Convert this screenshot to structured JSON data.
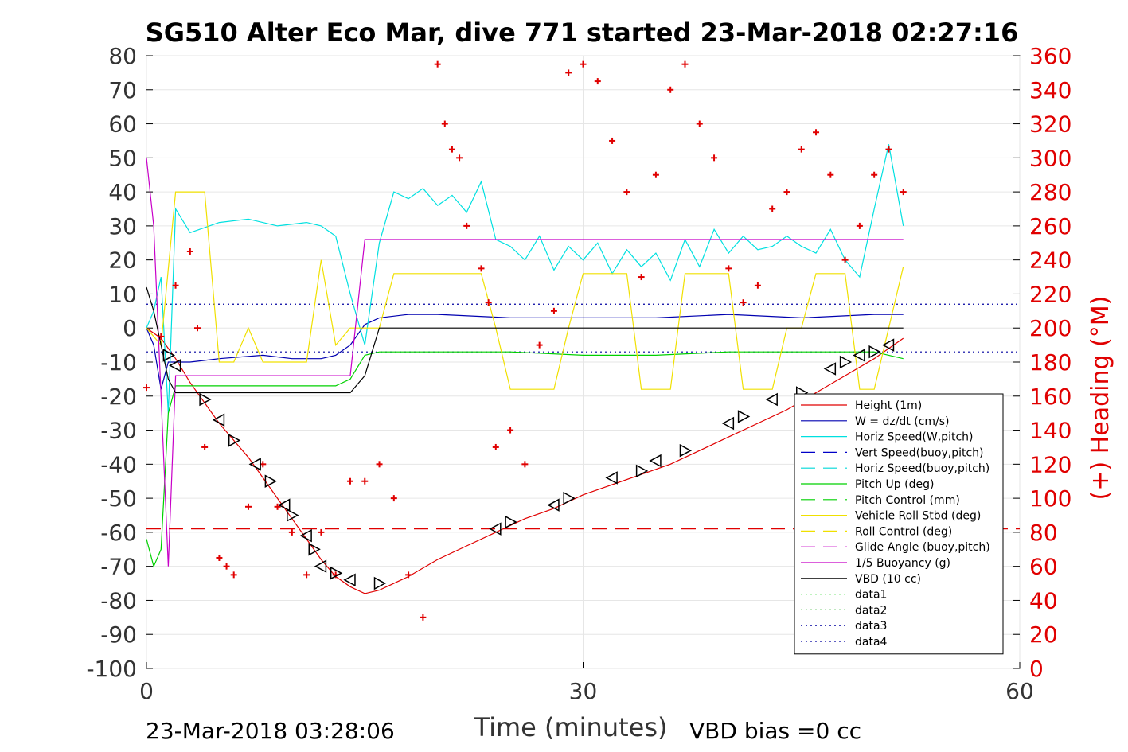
{
  "chart_data": {
    "type": "line",
    "title": "SG510 Alter Eco Mar, dive 771 started 23-Mar-2018 02:27:16",
    "xlabel": "Time (minutes)",
    "ylabel_right": "(+) Heading (°M)",
    "xlim": [
      0,
      60
    ],
    "ylim": [
      -100,
      80
    ],
    "ylim_right": [
      0,
      360
    ],
    "x_ticks": [
      "0",
      "30",
      "60"
    ],
    "y_ticks": [
      "80",
      "70",
      "60",
      "50",
      "40",
      "30",
      "20",
      "10",
      "0",
      "-10",
      "-20",
      "-30",
      "-40",
      "-50",
      "-60",
      "-70",
      "-80",
      "-90",
      "-100"
    ],
    "y_ticks_right": [
      "360",
      "340",
      "320",
      "300",
      "280",
      "260",
      "240",
      "220",
      "200",
      "180",
      "160",
      "140",
      "120",
      "100",
      "80",
      "60",
      "40",
      "20",
      "0"
    ],
    "grid": true,
    "legend_position": "bottom-right",
    "footer_left": "23-Mar-2018 03:28:06",
    "footer_right": "VBD bias =0 cc",
    "legend": [
      {
        "label": "Height (1m)",
        "color": "#e00000",
        "style": "solid"
      },
      {
        "label": "W = dz/dt (cm/s)",
        "color": "#0000b0",
        "style": "solid"
      },
      {
        "label": "Horiz Speed(W,pitch)",
        "color": "#00e0e0",
        "style": "solid"
      },
      {
        "label": "Vert Speed(buoy,pitch)",
        "color": "#0000c8",
        "style": "dashed"
      },
      {
        "label": "Horiz Speed(buoy,pitch)",
        "color": "#00d8d8",
        "style": "dashed"
      },
      {
        "label": "Pitch Up (deg)",
        "color": "#00d000",
        "style": "solid"
      },
      {
        "label": "Pitch Control (mm)",
        "color": "#00d000",
        "style": "dashed"
      },
      {
        "label": "Vehicle Roll Stbd (deg)",
        "color": "#f0e000",
        "style": "solid"
      },
      {
        "label": "Roll Control (deg)",
        "color": "#f0e000",
        "style": "dashed"
      },
      {
        "label": "Glide Angle (buoy,pitch)",
        "color": "#c800c8",
        "style": "dashed"
      },
      {
        "label": "1/5 Buoyancy (g)",
        "color": "#c800c8",
        "style": "solid"
      },
      {
        "label": "VBD (10 cc)",
        "color": "#000000",
        "style": "solid"
      },
      {
        "label": "data1",
        "color": "#00d000",
        "style": "dotted"
      },
      {
        "label": "data2",
        "color": "#00a000",
        "style": "dotted"
      },
      {
        "label": "data3",
        "color": "#0000a0",
        "style": "dotted"
      },
      {
        "label": "data4",
        "color": "#0000a0",
        "style": "dotted"
      }
    ],
    "series": [
      {
        "name": "Height (1m)",
        "color": "#e00000",
        "x": [
          0,
          1,
          2,
          3,
          4,
          5,
          6,
          7,
          8,
          9,
          10,
          11,
          12,
          13,
          14,
          15,
          16,
          18,
          20,
          22,
          24,
          26,
          28,
          30,
          32,
          34,
          36,
          38,
          40,
          42,
          44,
          46,
          48,
          50,
          51,
          52
        ],
        "y": [
          0,
          -3,
          -9,
          -16,
          -22,
          -28,
          -33,
          -38,
          -44,
          -50,
          -56,
          -62,
          -68,
          -73,
          -76,
          -78,
          -77,
          -73,
          -68,
          -64,
          -60,
          -56,
          -53,
          -49,
          -46,
          -43,
          -40,
          -36,
          -32,
          -28,
          -24,
          -19,
          -14,
          -9,
          -6,
          -3
        ]
      },
      {
        "name": "W = dz/dt (cm/s)",
        "color": "#0000b0",
        "x": [
          0,
          0.5,
          1,
          1.5,
          2,
          3,
          5,
          8,
          10,
          12,
          13,
          14,
          15,
          16,
          18,
          20,
          25,
          30,
          35,
          40,
          45,
          50,
          52
        ],
        "y": [
          0,
          -5,
          -18,
          -10,
          -10,
          -10,
          -9,
          -8,
          -9,
          -9,
          -8,
          -5,
          1,
          3,
          4,
          4,
          3,
          3,
          3,
          4,
          3,
          4,
          4
        ]
      },
      {
        "name": "Horiz Speed(W,pitch)",
        "color": "#00e0e0",
        "x": [
          0,
          0.5,
          1,
          1.5,
          2,
          3,
          5,
          7,
          9,
          11,
          12,
          13,
          14,
          15,
          16,
          17,
          18,
          19,
          20,
          21,
          22,
          23,
          24,
          25,
          26,
          27,
          28,
          29,
          30,
          31,
          32,
          33,
          34,
          35,
          36,
          37,
          38,
          39,
          40,
          41,
          42,
          43,
          44,
          45,
          46,
          47,
          48,
          49,
          50,
          51,
          52
        ],
        "y": [
          0,
          5,
          15,
          -25,
          35,
          28,
          31,
          32,
          30,
          31,
          30,
          27,
          10,
          -5,
          25,
          40,
          38,
          41,
          36,
          39,
          34,
          43,
          26,
          24,
          20,
          27,
          17,
          24,
          20,
          25,
          16,
          23,
          18,
          22,
          14,
          26,
          18,
          29,
          22,
          27,
          23,
          24,
          27,
          24,
          22,
          29,
          20,
          15,
          35,
          54,
          30
        ]
      },
      {
        "name": "Pitch Up (deg)",
        "color": "#00d000",
        "x": [
          0,
          0.5,
          1,
          1.5,
          2,
          3,
          5,
          8,
          10,
          12,
          13,
          14,
          15,
          16,
          20,
          25,
          30,
          35,
          40,
          45,
          50,
          52
        ],
        "y": [
          -62,
          -70,
          -65,
          -25,
          -17,
          -17,
          -17,
          -17,
          -17,
          -17,
          -17,
          -15,
          -8,
          -7,
          -7,
          -7,
          -8,
          -8,
          -7,
          -7,
          -7,
          -9
        ]
      },
      {
        "name": "Vehicle Roll Stbd (deg)",
        "color": "#f0e000",
        "x": [
          0,
          1,
          2,
          3,
          4,
          5,
          6,
          7,
          8,
          9,
          10,
          11,
          12,
          13,
          14,
          15,
          16,
          17,
          18,
          19,
          20,
          21,
          22,
          23,
          24,
          25,
          26,
          27,
          28,
          29,
          30,
          31,
          32,
          33,
          34,
          35,
          36,
          37,
          38,
          39,
          40,
          41,
          42,
          43,
          44,
          45,
          46,
          47,
          48,
          49,
          50,
          51,
          52
        ],
        "y": [
          0,
          -5,
          40,
          40,
          40,
          -10,
          -10,
          0,
          -10,
          -10,
          -10,
          -10,
          20,
          -5,
          0,
          0,
          0,
          16,
          16,
          16,
          16,
          16,
          16,
          16,
          0,
          -18,
          -18,
          -18,
          -18,
          0,
          16,
          16,
          16,
          16,
          -18,
          -18,
          -18,
          16,
          16,
          16,
          16,
          -18,
          -18,
          -18,
          0,
          0,
          16,
          16,
          16,
          -18,
          -18,
          0,
          18
        ]
      },
      {
        "name": "1/5 Buoyancy (g)",
        "color": "#c800c8",
        "x": [
          0,
          0.5,
          1,
          1.5,
          2,
          3,
          5,
          8,
          10,
          12,
          13,
          14,
          15,
          16,
          20,
          25,
          30,
          35,
          40,
          45,
          50,
          52
        ],
        "y": [
          50,
          30,
          -20,
          -70,
          -14,
          -14,
          -14,
          -14,
          -14,
          -14,
          -14,
          -14,
          26,
          26,
          26,
          26,
          26,
          26,
          26,
          26,
          26,
          26
        ]
      },
      {
        "name": "VBD (10 cc)",
        "color": "#000000",
        "x": [
          0,
          0.5,
          1,
          1.5,
          2,
          3,
          5,
          8,
          10,
          12,
          13,
          14,
          15,
          16,
          20,
          25,
          30,
          35,
          40,
          45,
          50,
          52
        ],
        "y": [
          12,
          5,
          -5,
          -15,
          -19,
          -19,
          -19,
          -19,
          -19,
          -19,
          -19,
          -19,
          -14,
          0,
          0,
          0,
          0,
          0,
          0,
          0,
          0,
          0
        ]
      }
    ],
    "heading_points": {
      "name": "(+) Heading (°M)",
      "color": "#e00000",
      "x": [
        0,
        1,
        2,
        3,
        3.5,
        4,
        5,
        5.5,
        6,
        7,
        8,
        9,
        10,
        11,
        12,
        13,
        14,
        15,
        16,
        17,
        18,
        19,
        20,
        20.5,
        21,
        21.5,
        22,
        23,
        23.5,
        24,
        25,
        26,
        27,
        28,
        29,
        30,
        31,
        32,
        33,
        34,
        35,
        36,
        37,
        38,
        39,
        40,
        41,
        42,
        43,
        44,
        45,
        46,
        47,
        48,
        49,
        50,
        51,
        52
      ],
      "y": [
        165,
        195,
        225,
        245,
        200,
        130,
        65,
        60,
        55,
        95,
        120,
        95,
        80,
        55,
        80,
        55,
        110,
        110,
        120,
        100,
        55,
        30,
        355,
        320,
        305,
        300,
        260,
        235,
        215,
        130,
        140,
        120,
        190,
        210,
        350,
        355,
        345,
        310,
        280,
        230,
        290,
        340,
        355,
        320,
        300,
        235,
        215,
        225,
        270,
        280,
        305,
        315,
        290,
        240,
        260,
        290,
        305,
        280
      ]
    },
    "markers": {
      "shape": "triangle",
      "x": [
        1.5,
        2,
        4,
        5,
        6,
        7.5,
        8.5,
        9.5,
        10,
        11,
        11.5,
        12,
        13,
        14,
        16,
        24,
        25,
        28,
        29,
        32,
        34,
        35,
        37,
        40,
        41,
        43,
        45,
        47,
        48,
        49,
        50,
        51
      ],
      "y": [
        -8,
        -11,
        -21,
        -27,
        -33,
        -40,
        -45,
        -52,
        -55,
        -61,
        -65,
        -70,
        -72,
        -74,
        -75,
        -59,
        -57,
        -52,
        -50,
        -44,
        -42,
        -39,
        -36,
        -28,
        -26,
        -21,
        -19,
        -12,
        -10,
        -8,
        -7,
        -5
      ]
    },
    "reference_lines": [
      {
        "y": 7,
        "color": "#0000a0",
        "style": "dotted"
      },
      {
        "y": -7,
        "color": "#0000a0",
        "style": "dotted"
      },
      {
        "y": -59,
        "color": "#e00000",
        "style": "dashed"
      }
    ]
  }
}
